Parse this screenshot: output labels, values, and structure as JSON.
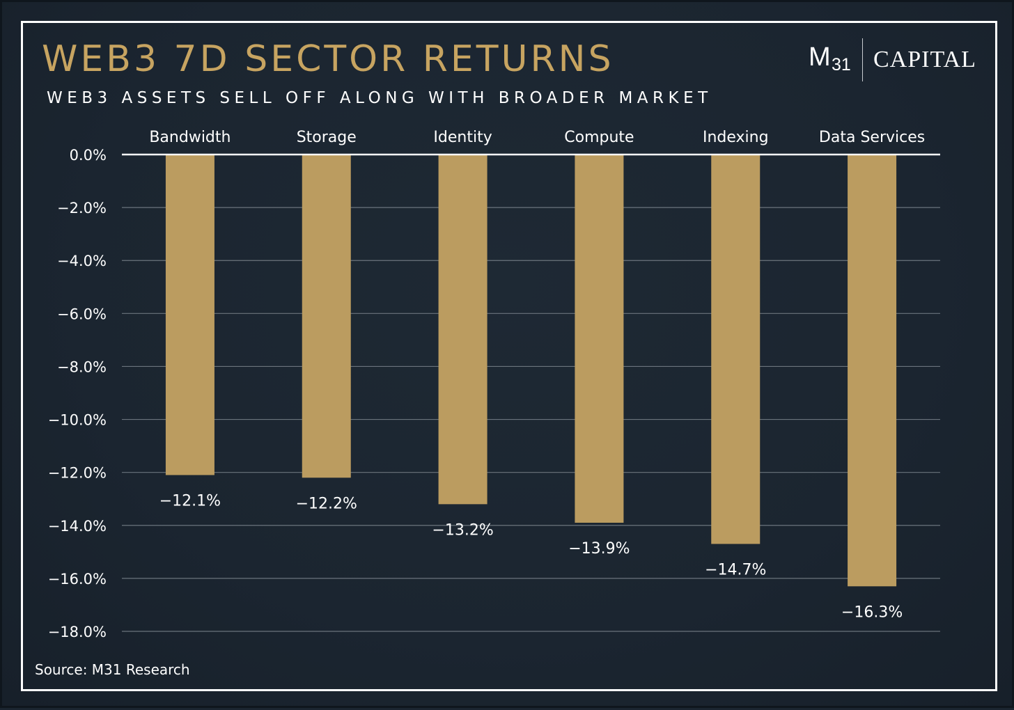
{
  "header": {
    "title": "WEB3 7D SECTOR RETURNS",
    "subtitle": "WEB3 ASSETS SELL OFF ALONG WITH BROADER MARKET"
  },
  "logo": {
    "m": "M",
    "sub": "31",
    "capital": "CAPITAL"
  },
  "footer": {
    "source": "Source: M31 Research"
  },
  "colors": {
    "background": "#1b2530",
    "bar": "#bb9c60",
    "title": "#c7a461",
    "text": "#ffffff",
    "gridline": "#6b747d"
  },
  "chart_data": {
    "type": "bar",
    "categories": [
      "Bandwidth",
      "Storage",
      "Identity",
      "Compute",
      "Indexing",
      "Data Services"
    ],
    "values": [
      -12.1,
      -12.2,
      -13.2,
      -13.9,
      -14.7,
      -16.3
    ],
    "data_labels": [
      "−12.1%",
      "−12.2%",
      "−13.2%",
      "−13.9%",
      "−14.7%",
      "−16.3%"
    ],
    "ylim": [
      -18.0,
      0.0
    ],
    "yticks": [
      0.0,
      -2.0,
      -4.0,
      -6.0,
      -8.0,
      -10.0,
      -12.0,
      -14.0,
      -16.0,
      -18.0
    ],
    "ytick_labels": [
      "0.0%",
      "−2.0%",
      "−4.0%",
      "−6.0%",
      "−8.0%",
      "−10.0%",
      "−12.0%",
      "−14.0%",
      "−16.0%",
      "−18.0%"
    ],
    "category_axis_position": "top",
    "grid": true,
    "legend": "none"
  }
}
